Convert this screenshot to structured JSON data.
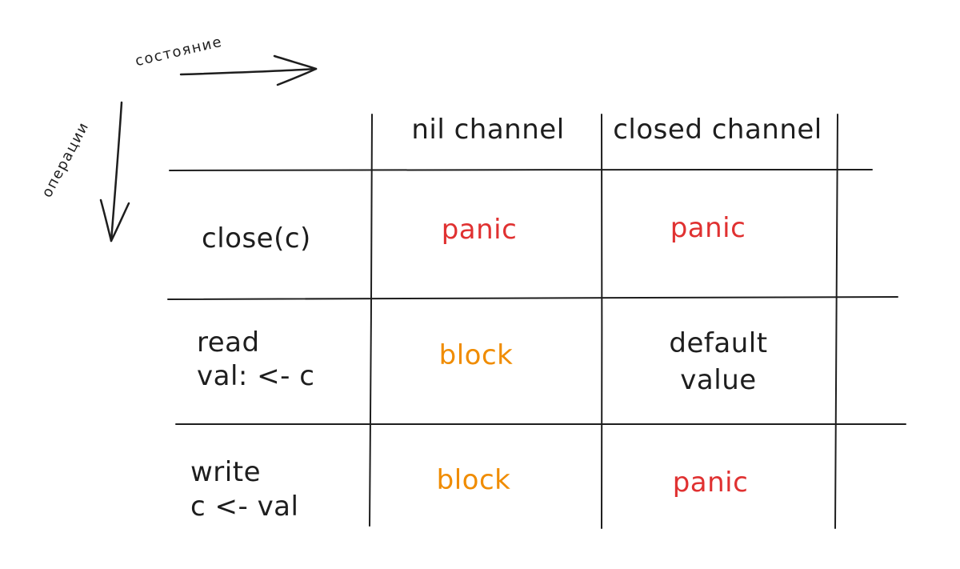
{
  "axes": {
    "state_label": "состояние",
    "operations_label": "операции"
  },
  "table": {
    "columns": [
      "nil channel",
      "closed channel"
    ],
    "rows": [
      {
        "operation": "close(c)",
        "cells": [
          "panic",
          "panic"
        ]
      },
      {
        "operation_line1": "read",
        "operation_line2": "val: <- c",
        "cells": [
          "block",
          "default\nvalue"
        ]
      },
      {
        "operation_line1": "write",
        "operation_line2": "c <- val",
        "cells": [
          "block",
          "panic"
        ]
      }
    ]
  },
  "colors": {
    "ink": "#1e1e1e",
    "panic": "#e03131",
    "block": "#f08c00"
  }
}
